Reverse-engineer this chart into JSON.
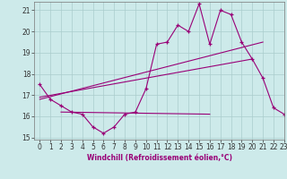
{
  "xlabel": "Windchill (Refroidissement éolien,°C)",
  "background_color": "#cdeaea",
  "line_color": "#990077",
  "grid_color": "#aacccc",
  "hours": [
    0,
    1,
    2,
    3,
    4,
    5,
    6,
    7,
    8,
    9,
    10,
    11,
    12,
    13,
    14,
    15,
    16,
    17,
    18,
    19,
    20,
    21,
    22,
    23
  ],
  "temp_line": [
    17.5,
    16.8,
    16.5,
    16.2,
    16.1,
    15.5,
    15.2,
    15.5,
    16.1,
    16.2,
    17.3,
    19.4,
    19.5,
    20.3,
    20.0,
    21.3,
    19.4,
    21.0,
    20.8,
    19.5,
    18.7,
    17.8,
    16.4,
    16.1
  ],
  "flat_line_x": [
    2,
    16
  ],
  "flat_line_y": [
    16.2,
    16.1
  ],
  "trend_line_x": [
    0,
    21
  ],
  "trend_line_y": [
    16.8,
    19.5
  ],
  "trend_line2_x": [
    0,
    20
  ],
  "trend_line2_y": [
    16.9,
    18.7
  ],
  "ylim": [
    14.9,
    21.4
  ],
  "xlim": [
    -0.5,
    23
  ]
}
